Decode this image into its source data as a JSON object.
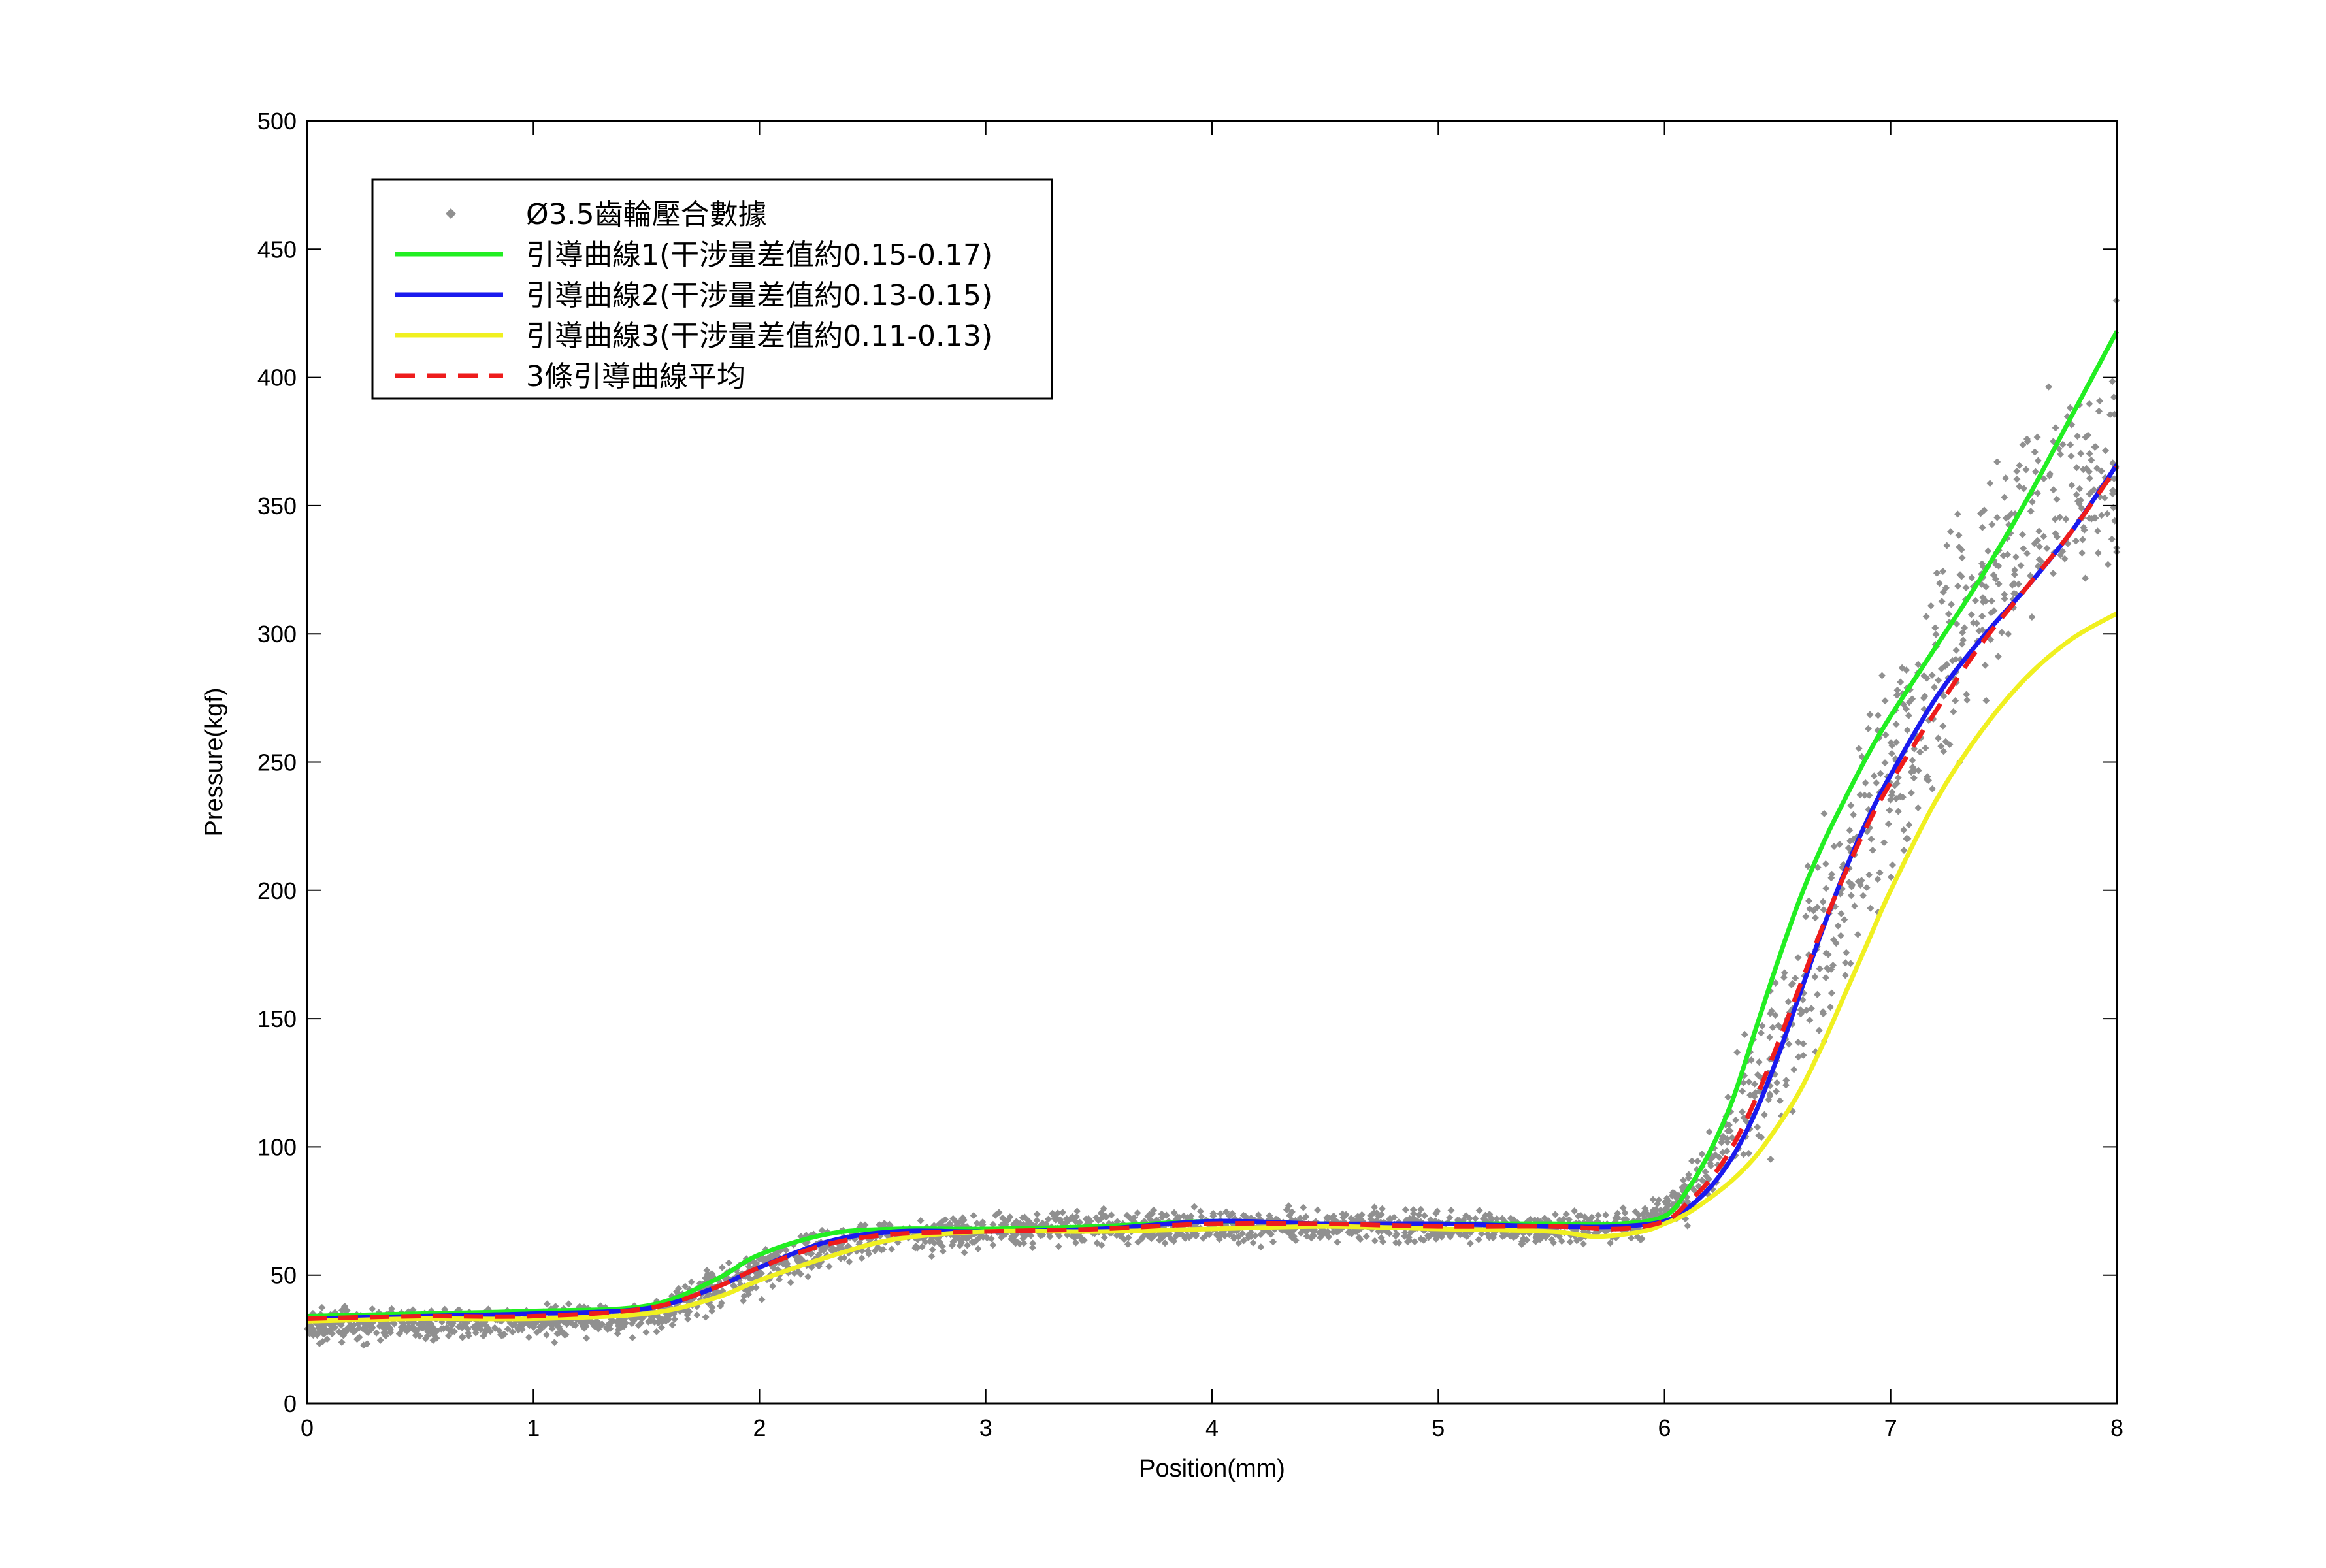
{
  "chart_data": {
    "type": "scatter",
    "title": "",
    "xlabel": "Position(mm)",
    "ylabel": "Pressure(kgf)",
    "xlim": [
      0,
      8
    ],
    "ylim": [
      0,
      500
    ],
    "xticks": [
      0,
      1,
      2,
      3,
      4,
      5,
      6,
      7,
      8
    ],
    "yticks": [
      0,
      50,
      100,
      150,
      200,
      250,
      300,
      350,
      400,
      450,
      500
    ],
    "grid": false,
    "legend_position": "top-left",
    "series": [
      {
        "name": "Ø3.5齒輪壓合數據",
        "kind": "scatter",
        "color": "#909090",
        "marker": "diamond",
        "envelope": {
          "x": [
            0,
            0.5,
            1.0,
            1.5,
            2.0,
            2.5,
            3.0,
            3.5,
            4.0,
            4.5,
            5.0,
            5.5,
            5.9,
            6.1,
            6.3,
            6.5,
            6.7,
            6.9,
            7.1,
            7.3,
            7.5,
            7.7,
            8.0
          ],
          "lower": [
            20,
            22,
            22,
            25,
            38,
            55,
            58,
            60,
            60,
            60,
            60,
            60,
            62,
            65,
            75,
            90,
            120,
            160,
            205,
            240,
            270,
            290,
            300
          ],
          "upper": [
            40,
            40,
            40,
            42,
            65,
            75,
            76,
            78,
            78,
            78,
            78,
            76,
            78,
            95,
            135,
            185,
            235,
            285,
            320,
            360,
            390,
            420,
            440
          ]
        }
      },
      {
        "name": "引導曲線1(干涉量差值約0.15-0.17)",
        "kind": "line",
        "color": "#22ee22",
        "dash": "solid",
        "x": [
          0,
          0.5,
          1.0,
          1.5,
          1.8,
          2.0,
          2.3,
          2.6,
          3.0,
          3.5,
          4.0,
          4.5,
          5.0,
          5.5,
          5.8,
          6.0,
          6.1,
          6.2,
          6.3,
          6.4,
          6.5,
          6.6,
          6.7,
          6.8,
          6.9,
          7.0,
          7.2,
          7.4,
          7.6,
          7.8,
          8.0
        ],
        "y": [
          34,
          35,
          36,
          38,
          48,
          58,
          66,
          68,
          68,
          69,
          71,
          70,
          70,
          70,
          70,
          73,
          83,
          98,
          118,
          145,
          172,
          197,
          218,
          236,
          253,
          268,
          295,
          322,
          352,
          385,
          418
        ]
      },
      {
        "name": "引導曲線2(干涉量差值約0.13-0.15)",
        "kind": "line",
        "color": "#1a1aee",
        "dash": "solid",
        "x": [
          0,
          0.5,
          1.0,
          1.5,
          1.8,
          2.0,
          2.3,
          2.6,
          3.0,
          3.5,
          4.0,
          4.5,
          5.0,
          5.5,
          5.8,
          6.0,
          6.1,
          6.2,
          6.3,
          6.4,
          6.5,
          6.6,
          6.7,
          6.8,
          6.9,
          7.0,
          7.2,
          7.4,
          7.6,
          7.8,
          8.0
        ],
        "y": [
          33,
          34,
          35,
          37,
          45,
          53,
          63,
          67,
          67,
          68,
          71,
          70,
          70,
          69,
          69,
          71,
          76,
          84,
          96,
          113,
          135,
          160,
          185,
          208,
          228,
          245,
          275,
          298,
          318,
          340,
          366
        ]
      },
      {
        "name": "引導曲線3(干涉量差值約0.11-0.13)",
        "kind": "line",
        "color": "#f0f020",
        "dash": "solid",
        "x": [
          0,
          0.5,
          1.0,
          1.5,
          1.8,
          2.0,
          2.3,
          2.6,
          3.0,
          3.5,
          4.0,
          4.5,
          5.0,
          5.5,
          5.7,
          5.9,
          6.0,
          6.1,
          6.2,
          6.3,
          6.4,
          6.5,
          6.6,
          6.7,
          6.8,
          6.9,
          7.0,
          7.2,
          7.4,
          7.6,
          7.8,
          8.0
        ],
        "y": [
          32,
          33,
          33,
          35,
          41,
          48,
          57,
          64,
          67,
          67,
          68,
          69,
          68,
          67,
          65,
          67,
          70,
          74,
          80,
          87,
          96,
          108,
          122,
          140,
          160,
          180,
          200,
          235,
          262,
          283,
          298,
          308
        ]
      },
      {
        "name": "3條引導曲線平均",
        "kind": "line",
        "color": "#ee1c1c",
        "dash": "dashed",
        "x": [
          0,
          0.5,
          1.0,
          1.5,
          1.8,
          2.0,
          2.3,
          2.6,
          3.0,
          3.5,
          4.0,
          4.5,
          5.0,
          5.5,
          5.8,
          6.0,
          6.1,
          6.2,
          6.3,
          6.4,
          6.5,
          6.6,
          6.7,
          6.8,
          6.9,
          7.0,
          7.2,
          7.4,
          7.6,
          7.8,
          8.0
        ],
        "y": [
          33,
          34,
          34,
          37,
          45,
          53,
          62,
          66,
          67,
          68,
          70,
          70,
          69,
          69,
          68,
          71,
          78,
          87,
          100,
          118,
          140,
          163,
          186,
          207,
          226,
          242,
          270,
          296,
          318,
          340,
          365
        ]
      }
    ]
  }
}
